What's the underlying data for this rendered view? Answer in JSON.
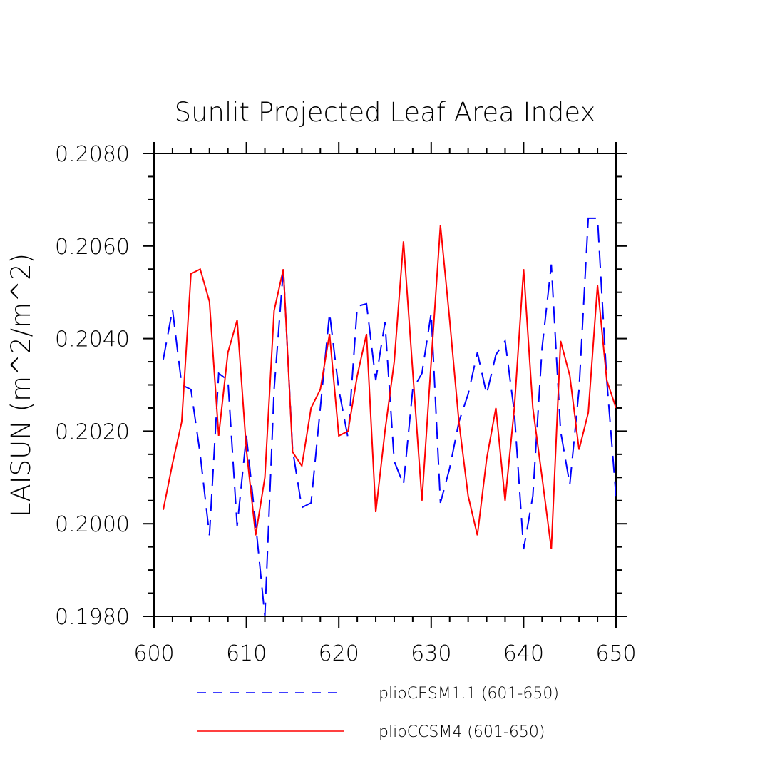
{
  "chart_data": {
    "type": "line",
    "title": "Sunlit Projected Leaf Area Index",
    "ylabel": "LAISUN   (m^2/m^2)",
    "xlabel": "",
    "xlim": [
      600,
      650
    ],
    "ylim": [
      0.198,
      0.208
    ],
    "xticks": [
      600,
      610,
      620,
      630,
      640,
      650
    ],
    "xtick_labels": [
      "600",
      "610",
      "620",
      "630",
      "640",
      "650"
    ],
    "yticks": [
      0.198,
      0.2,
      0.202,
      0.204,
      0.206,
      0.208
    ],
    "ytick_labels": [
      "0.1980",
      "0.2000",
      "0.2020",
      "0.2040",
      "0.2060",
      "0.2080"
    ],
    "legend_position": "bottom",
    "x": [
      601,
      602,
      603,
      604,
      605,
      606,
      607,
      608,
      609,
      610,
      611,
      612,
      613,
      614,
      615,
      616,
      617,
      618,
      619,
      620,
      621,
      622,
      623,
      624,
      625,
      626,
      627,
      628,
      629,
      630,
      631,
      632,
      633,
      634,
      635,
      636,
      637,
      638,
      639,
      640,
      641,
      642,
      643,
      644,
      645,
      646,
      647,
      648,
      649,
      650
    ],
    "series": [
      {
        "name": "plioCESM1.1 (601-650)",
        "color": "#0000ff",
        "dash": "dashed",
        "values": [
          0.20355,
          0.20463,
          0.203,
          0.2029,
          0.2015,
          0.19975,
          0.20325,
          0.2031,
          0.19995,
          0.2019,
          0.2,
          0.198,
          0.2029,
          0.2055,
          0.2016,
          0.20035,
          0.20045,
          0.2025,
          0.20455,
          0.2029,
          0.20185,
          0.2047,
          0.20475,
          0.2031,
          0.20435,
          0.20135,
          0.20085,
          0.2029,
          0.20325,
          0.20455,
          0.20045,
          0.2012,
          0.2022,
          0.2028,
          0.2037,
          0.2028,
          0.20365,
          0.20395,
          0.2024,
          0.19945,
          0.2006,
          0.2038,
          0.2056,
          0.202,
          0.20085,
          0.2029,
          0.2066,
          0.2066,
          0.2031,
          0.2006
        ]
      },
      {
        "name": "plioCCSM4 (601-650)",
        "color": "#ff0000",
        "dash": "solid",
        "values": [
          0.2003,
          0.2013,
          0.2022,
          0.2054,
          0.2055,
          0.2048,
          0.2019,
          0.2037,
          0.2044,
          0.2016,
          0.19975,
          0.201,
          0.2046,
          0.2055,
          0.20155,
          0.20125,
          0.2025,
          0.2029,
          0.2041,
          0.2019,
          0.202,
          0.2032,
          0.2041,
          0.20025,
          0.202,
          0.2035,
          0.2061,
          0.2033,
          0.2005,
          0.2035,
          0.20645,
          0.2044,
          0.2022,
          0.2006,
          0.19975,
          0.2014,
          0.2025,
          0.2005,
          0.2025,
          0.2055,
          0.2025,
          0.201,
          0.19945,
          0.20395,
          0.2032,
          0.2016,
          0.2024,
          0.20515,
          0.2031,
          0.2025
        ]
      }
    ]
  }
}
